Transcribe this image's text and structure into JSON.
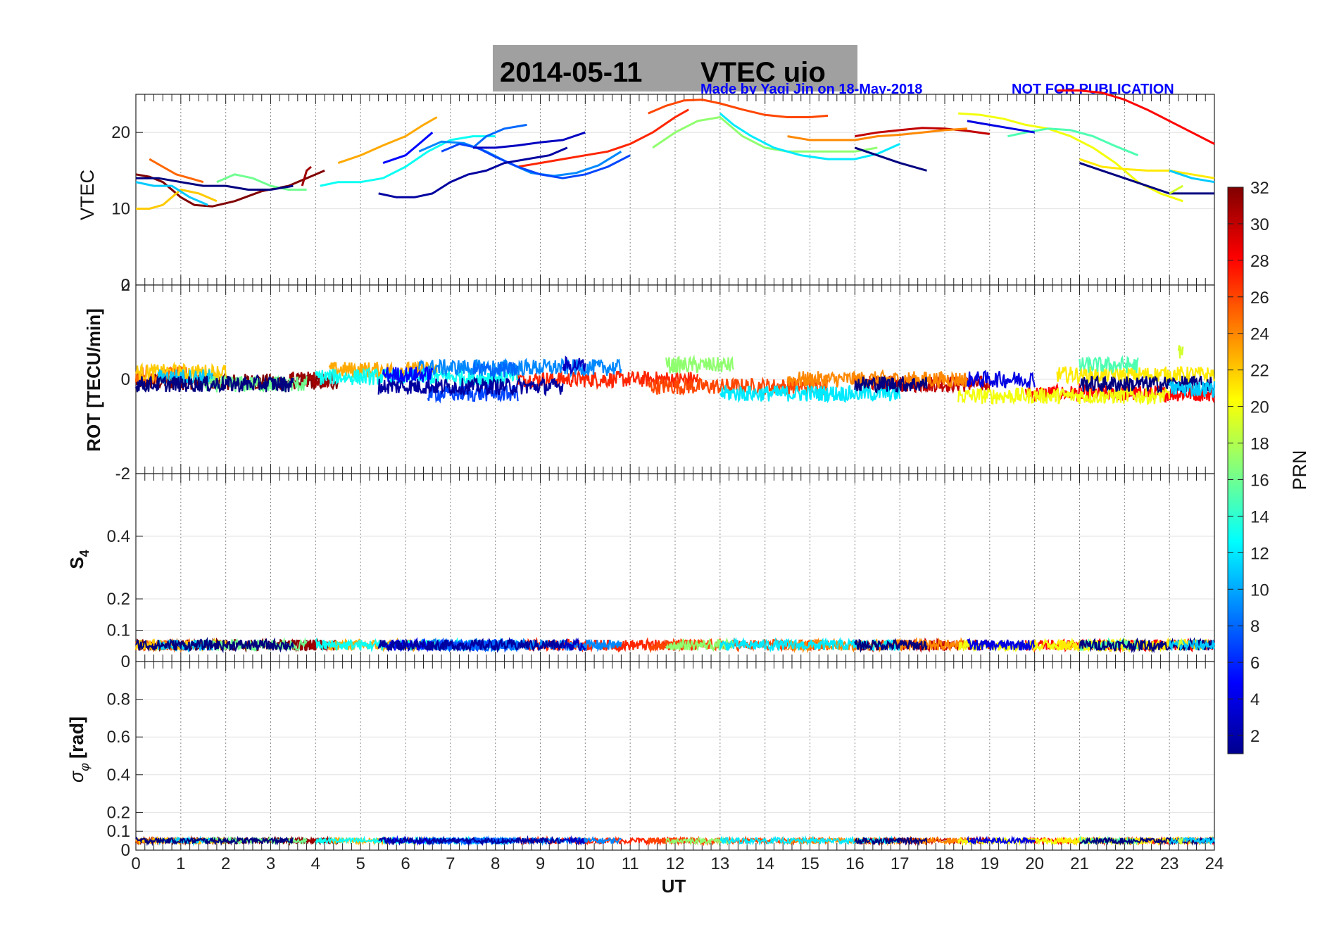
{
  "title_date": "2014-05-11",
  "title_name": "VTEC  uio",
  "credit": "Made by Yaqi Jin on 18-May-2018",
  "notice": "NOT FOR PUBLICATION",
  "chart_data": {
    "type": "line",
    "xlabel": "UT",
    "xlim": [
      0,
      24
    ],
    "x_ticks": [
      "0",
      "1",
      "2",
      "3",
      "4",
      "5",
      "6",
      "7",
      "8",
      "9",
      "10",
      "11",
      "12",
      "13",
      "14",
      "15",
      "16",
      "17",
      "18",
      "19",
      "20",
      "21",
      "22",
      "23",
      "24"
    ],
    "panels": [
      {
        "id": "vtec",
        "ylabel": "VTEC",
        "ylim": [
          0,
          25
        ],
        "yticks": [
          {
            "v": 0,
            "label": "0"
          },
          {
            "v": 10,
            "label": "10"
          },
          {
            "v": 20,
            "label": "20"
          }
        ]
      },
      {
        "id": "rot",
        "ylabel": "ROT [TECU/min]",
        "ylim": [
          -2,
          2
        ],
        "yticks": [
          {
            "v": 2,
            "label": "2"
          },
          {
            "v": 0,
            "label": "0"
          },
          {
            "v": -2,
            "label": "-2"
          }
        ]
      },
      {
        "id": "s4",
        "ylabel_main": "S",
        "ylabel_sub": "4",
        "ylim": [
          0,
          0.6
        ],
        "yticks": [
          {
            "v": 0,
            "label": "0"
          },
          {
            "v": 0.1,
            "label": "0.1"
          },
          {
            "v": 0.2,
            "label": "0.2"
          },
          {
            "v": 0.4,
            "label": "0.4"
          }
        ]
      },
      {
        "id": "sigma",
        "ylabel_sym": "σ",
        "ylabel_sub": "φ",
        "ylabel_unit": "[rad]",
        "ylim": [
          0,
          1
        ],
        "yticks": [
          {
            "v": 0,
            "label": "0"
          },
          {
            "v": 0.1,
            "label": "0.1"
          },
          {
            "v": 0.2,
            "label": "0.2"
          },
          {
            "v": 0.4,
            "label": "0.4"
          },
          {
            "v": 0.6,
            "label": "0.6"
          },
          {
            "v": 0.8,
            "label": "0.8"
          }
        ]
      }
    ],
    "colorbar": {
      "label": "PRN",
      "min": 1,
      "max": 32,
      "ticks": [
        "2",
        "4",
        "6",
        "8",
        "10",
        "12",
        "14",
        "16",
        "18",
        "20",
        "22",
        "24",
        "26",
        "28",
        "30",
        "32"
      ]
    },
    "series": [
      {
        "prn": 32,
        "vtec": {
          "x": [
            0,
            0.3,
            0.6,
            1.0,
            1.3,
            1.7,
            2.2,
            2.8,
            3.4,
            3.8,
            4.2
          ],
          "y": [
            14.5,
            14.2,
            13.5,
            11.5,
            10.5,
            10.3,
            11,
            12.3,
            13,
            14,
            15
          ]
        },
        "rot_level": -0.05,
        "rot_range": [
          0,
          4.5
        ]
      },
      {
        "prn": 30,
        "vtec": {
          "x": [
            16,
            16.5,
            17,
            17.5,
            18,
            18.5,
            19
          ],
          "y": [
            19.5,
            20,
            20.3,
            20.6,
            20.5,
            20.2,
            19.8
          ]
        },
        "rot_level": -0.1,
        "rot_range": [
          16,
          19
        ]
      },
      {
        "prn": 31,
        "vtec": {
          "x": [
            3.7,
            3.8,
            3.9
          ],
          "y": [
            13,
            15,
            15.5
          ]
        },
        "rot_level": 0,
        "rot_range": [
          3.4,
          4.4
        ]
      },
      {
        "prn": 28,
        "vtec": {
          "x": [
            20.5,
            21,
            21.5,
            22,
            22.5,
            23,
            23.5,
            24
          ],
          "y": [
            25.5,
            25.5,
            25.2,
            24.3,
            23,
            21.5,
            20,
            18.5
          ]
        },
        "rot_level": -0.3,
        "rot_range": [
          19.8,
          24
        ]
      },
      {
        "prn": 27,
        "vtec": {
          "x": [
            8.5,
            9,
            9.5,
            10,
            10.5,
            11,
            11.5,
            12,
            12.3
          ],
          "y": [
            15.5,
            16,
            16.5,
            17,
            17.5,
            18.5,
            20,
            22,
            23
          ]
        },
        "rot_level": 0,
        "rot_range": [
          8.5,
          12.5
        ]
      },
      {
        "prn": 26,
        "vtec": {
          "x": [
            11.4,
            11.8,
            12.2,
            12.6,
            13,
            13.5,
            14,
            14.5,
            15,
            15.4
          ],
          "y": [
            22.5,
            23.5,
            24.2,
            24.3,
            23.8,
            23,
            22.3,
            22,
            22,
            22.2
          ]
        },
        "rot_level": -0.15,
        "rot_range": [
          11.4,
          15.4
        ]
      },
      {
        "prn": 25,
        "vtec": {
          "x": [
            0.3,
            0.6,
            0.9,
            1.2,
            1.5
          ],
          "y": [
            16.5,
            15.5,
            14.5,
            14,
            13.5
          ]
        },
        "rot_level": 0.1,
        "rot_range": [
          0,
          1.2
        ]
      },
      {
        "prn": 24,
        "vtec": {
          "x": [
            14.5,
            15,
            15.5,
            16,
            16.5,
            17,
            17.5,
            18,
            18.5
          ],
          "y": [
            19.5,
            19,
            19,
            19,
            19.5,
            19.7,
            20,
            20.3,
            20.5
          ]
        },
        "rot_level": 0,
        "rot_range": [
          14.5,
          18.5
        ]
      },
      {
        "prn": 22,
        "vtec": {
          "x": [
            0,
            0.3,
            0.6,
            1.0,
            1.4,
            1.8
          ],
          "y": [
            10,
            10,
            10.5,
            12.5,
            12,
            11
          ]
        },
        "rot_level": 0.15,
        "rot_range": [
          0,
          2
        ]
      },
      {
        "prn": 23,
        "vtec": {
          "x": [
            4.5,
            5,
            5.5,
            6,
            6.4,
            6.7
          ],
          "y": [
            16,
            17,
            18.3,
            19.5,
            21,
            22
          ]
        },
        "rot_level": 0.2,
        "rot_range": [
          4.3,
          6.7
        ]
      },
      {
        "prn": 20,
        "vtec": {
          "x": [
            18.3,
            18.8,
            19.3,
            19.8,
            20.3,
            20.8,
            21.3,
            21.8,
            22.3,
            22.8,
            23.3
          ],
          "y": [
            22.5,
            22.3,
            21.8,
            21,
            20.5,
            19.5,
            18,
            16,
            13.5,
            12,
            11
          ]
        },
        "rot_level": -0.35,
        "rot_range": [
          18.3,
          23
        ]
      },
      {
        "prn": 21,
        "vtec": {
          "x": [
            21,
            21.5,
            22,
            22.5,
            23,
            23.5,
            24
          ],
          "y": [
            16.5,
            15.5,
            15.2,
            15,
            15,
            14.5,
            14
          ]
        },
        "rot_level": 0.1,
        "rot_range": [
          20.5,
          24
        ]
      },
      {
        "prn": 17,
        "vtec": {
          "x": [
            11.5,
            12,
            12.5,
            13,
            13.5,
            14,
            14.5,
            15,
            15.5,
            16,
            16.5
          ],
          "y": [
            18,
            20,
            21.5,
            22,
            19.5,
            18,
            17.5,
            17.5,
            17.5,
            17.5,
            18
          ]
        },
        "rot_level": 0.3,
        "rot_range": [
          11.8,
          13.3
        ]
      },
      {
        "prn": 16,
        "vtec": {
          "x": [
            1.8,
            2.2,
            2.6,
            3,
            3.4,
            3.8
          ],
          "y": [
            13.5,
            14.5,
            14,
            13,
            12.5,
            12.5
          ]
        },
        "rot_level": -0.1,
        "rot_range": [
          1.5,
          3.8
        ]
      },
      {
        "prn": 15,
        "vtec": {
          "x": [
            19.4,
            19.8,
            20.3,
            20.8,
            21.3,
            21.8,
            22.3
          ],
          "y": [
            19.5,
            20,
            20.5,
            20.3,
            19.5,
            18.2,
            17
          ]
        },
        "rot_level": 0.3,
        "rot_range": [
          21,
          22.3
        ]
      },
      {
        "prn": 13,
        "vtec": {
          "x": [
            4.1,
            4.5,
            5,
            5.5,
            6,
            6.5,
            7,
            7.5,
            8
          ],
          "y": [
            13,
            13.5,
            13.5,
            14,
            15.5,
            17.5,
            19,
            19.5,
            19.5
          ]
        },
        "rot_level": 0.05,
        "rot_range": [
          4,
          8.5
        ]
      },
      {
        "prn": 12,
        "vtec": {
          "x": [
            13,
            13.3,
            13.7,
            14.2,
            14.8,
            15.4,
            16,
            16.5,
            17
          ],
          "y": [
            22.5,
            21,
            19.5,
            18,
            17,
            16.5,
            16.5,
            17.2,
            18.5
          ]
        },
        "rot_level": -0.3,
        "rot_range": [
          13,
          17
        ]
      },
      {
        "prn": 11,
        "vtec": {
          "x": [
            0,
            0.4,
            0.8,
            1.2,
            1.6
          ],
          "y": [
            13.5,
            13,
            13,
            11.5,
            10.5
          ]
        },
        "rot_level": 0.05,
        "rot_range": [
          0.5,
          1.7
        ]
      },
      {
        "prn": 9,
        "vtec": {
          "x": [
            6.3,
            6.8,
            7.3,
            7.8,
            8.3,
            8.8,
            9.3,
            9.8,
            10.3,
            10.8
          ],
          "y": [
            17.5,
            18.8,
            18.6,
            17.5,
            16,
            14.7,
            14.3,
            14.7,
            15.7,
            17.5
          ]
        },
        "rot_level": 0.25,
        "rot_range": [
          6.3,
          10.8
        ]
      },
      {
        "prn": 7,
        "vtec": {
          "x": [
            6.8,
            7.2,
            7.6,
            8,
            8.5,
            9,
            9.5,
            10,
            10.5,
            11
          ],
          "y": [
            17.5,
            18.5,
            18,
            16.8,
            15.5,
            14.5,
            14,
            14.5,
            15.5,
            17
          ]
        },
        "rot_level": -0.3,
        "rot_range": [
          6.5,
          8.5
        ]
      },
      {
        "prn": 8,
        "vtec": {
          "x": [
            7.5,
            7.8,
            8.2,
            8.7
          ],
          "y": [
            18,
            19.5,
            20.5,
            21
          ]
        },
        "rot_level": 0.2,
        "rot_range": [
          7.5,
          8.5
        ]
      },
      {
        "prn": 5,
        "vtec": {
          "x": [
            5.5,
            6,
            6.3,
            6.6
          ],
          "y": [
            16,
            17,
            18.5,
            20
          ]
        },
        "rot_level": 0.1,
        "rot_range": [
          5.5,
          6.6
        ]
      },
      {
        "prn": 3,
        "vtec": {
          "x": [
            7.5,
            8,
            8.5,
            9,
            9.5,
            10
          ],
          "y": [
            18,
            18,
            18.3,
            18.7,
            19,
            20
          ]
        },
        "rot_level": 0.3,
        "rot_range": [
          9.5,
          10
        ]
      },
      {
        "prn": 2,
        "vtec": {
          "x": [
            5.4,
            5.8,
            6.2,
            6.6,
            7,
            7.4,
            7.8,
            8.2,
            8.7,
            9.2,
            9.6
          ],
          "y": [
            12,
            11.5,
            11.5,
            12,
            13.5,
            14.5,
            15,
            16,
            16.5,
            17,
            18
          ]
        },
        "rot_level": -0.15,
        "rot_range": [
          5.4,
          9.5
        ]
      },
      {
        "prn": 1,
        "vtec": {
          "x": [
            0,
            0.5,
            1,
            1.5,
            2,
            2.5,
            3,
            3.5
          ],
          "y": [
            14,
            14,
            13.5,
            13,
            13,
            12.5,
            12.5,
            13
          ]
        },
        "rot_level": -0.1,
        "rot_range": [
          0,
          3.5
        ]
      },
      {
        "prn": 4,
        "vtec": {
          "x": [
            18.5,
            19,
            19.5,
            20
          ],
          "y": [
            21.5,
            21,
            20.5,
            20
          ]
        },
        "rot_level": 0,
        "rot_range": [
          18.5,
          20
        ]
      },
      {
        "prn": 1,
        "vtec": {
          "x": [
            16,
            16.5,
            17,
            17.6
          ],
          "y": [
            18,
            17,
            16,
            15
          ]
        },
        "rot_level": -0.1,
        "rot_range": [
          16,
          17.6
        ]
      },
      {
        "prn": 1,
        "vtec": {
          "x": [
            21,
            21.5,
            22,
            22.5,
            23,
            23.5,
            24
          ],
          "y": [
            16,
            15,
            14,
            13,
            12,
            12,
            12
          ]
        },
        "rot_level": -0.1,
        "rot_range": [
          21,
          24
        ]
      },
      {
        "prn": 11,
        "vtec": {
          "x": [
            23,
            23.5,
            24
          ],
          "y": [
            15,
            14,
            13.5
          ]
        },
        "rot_level": -0.2,
        "rot_range": [
          23,
          24
        ]
      },
      {
        "prn": 19,
        "vtec": {
          "x": [
            23,
            23.3
          ],
          "y": [
            12,
            13
          ]
        },
        "rot_level": 0.6,
        "rot_range": [
          23.2,
          23.3
        ]
      }
    ]
  }
}
